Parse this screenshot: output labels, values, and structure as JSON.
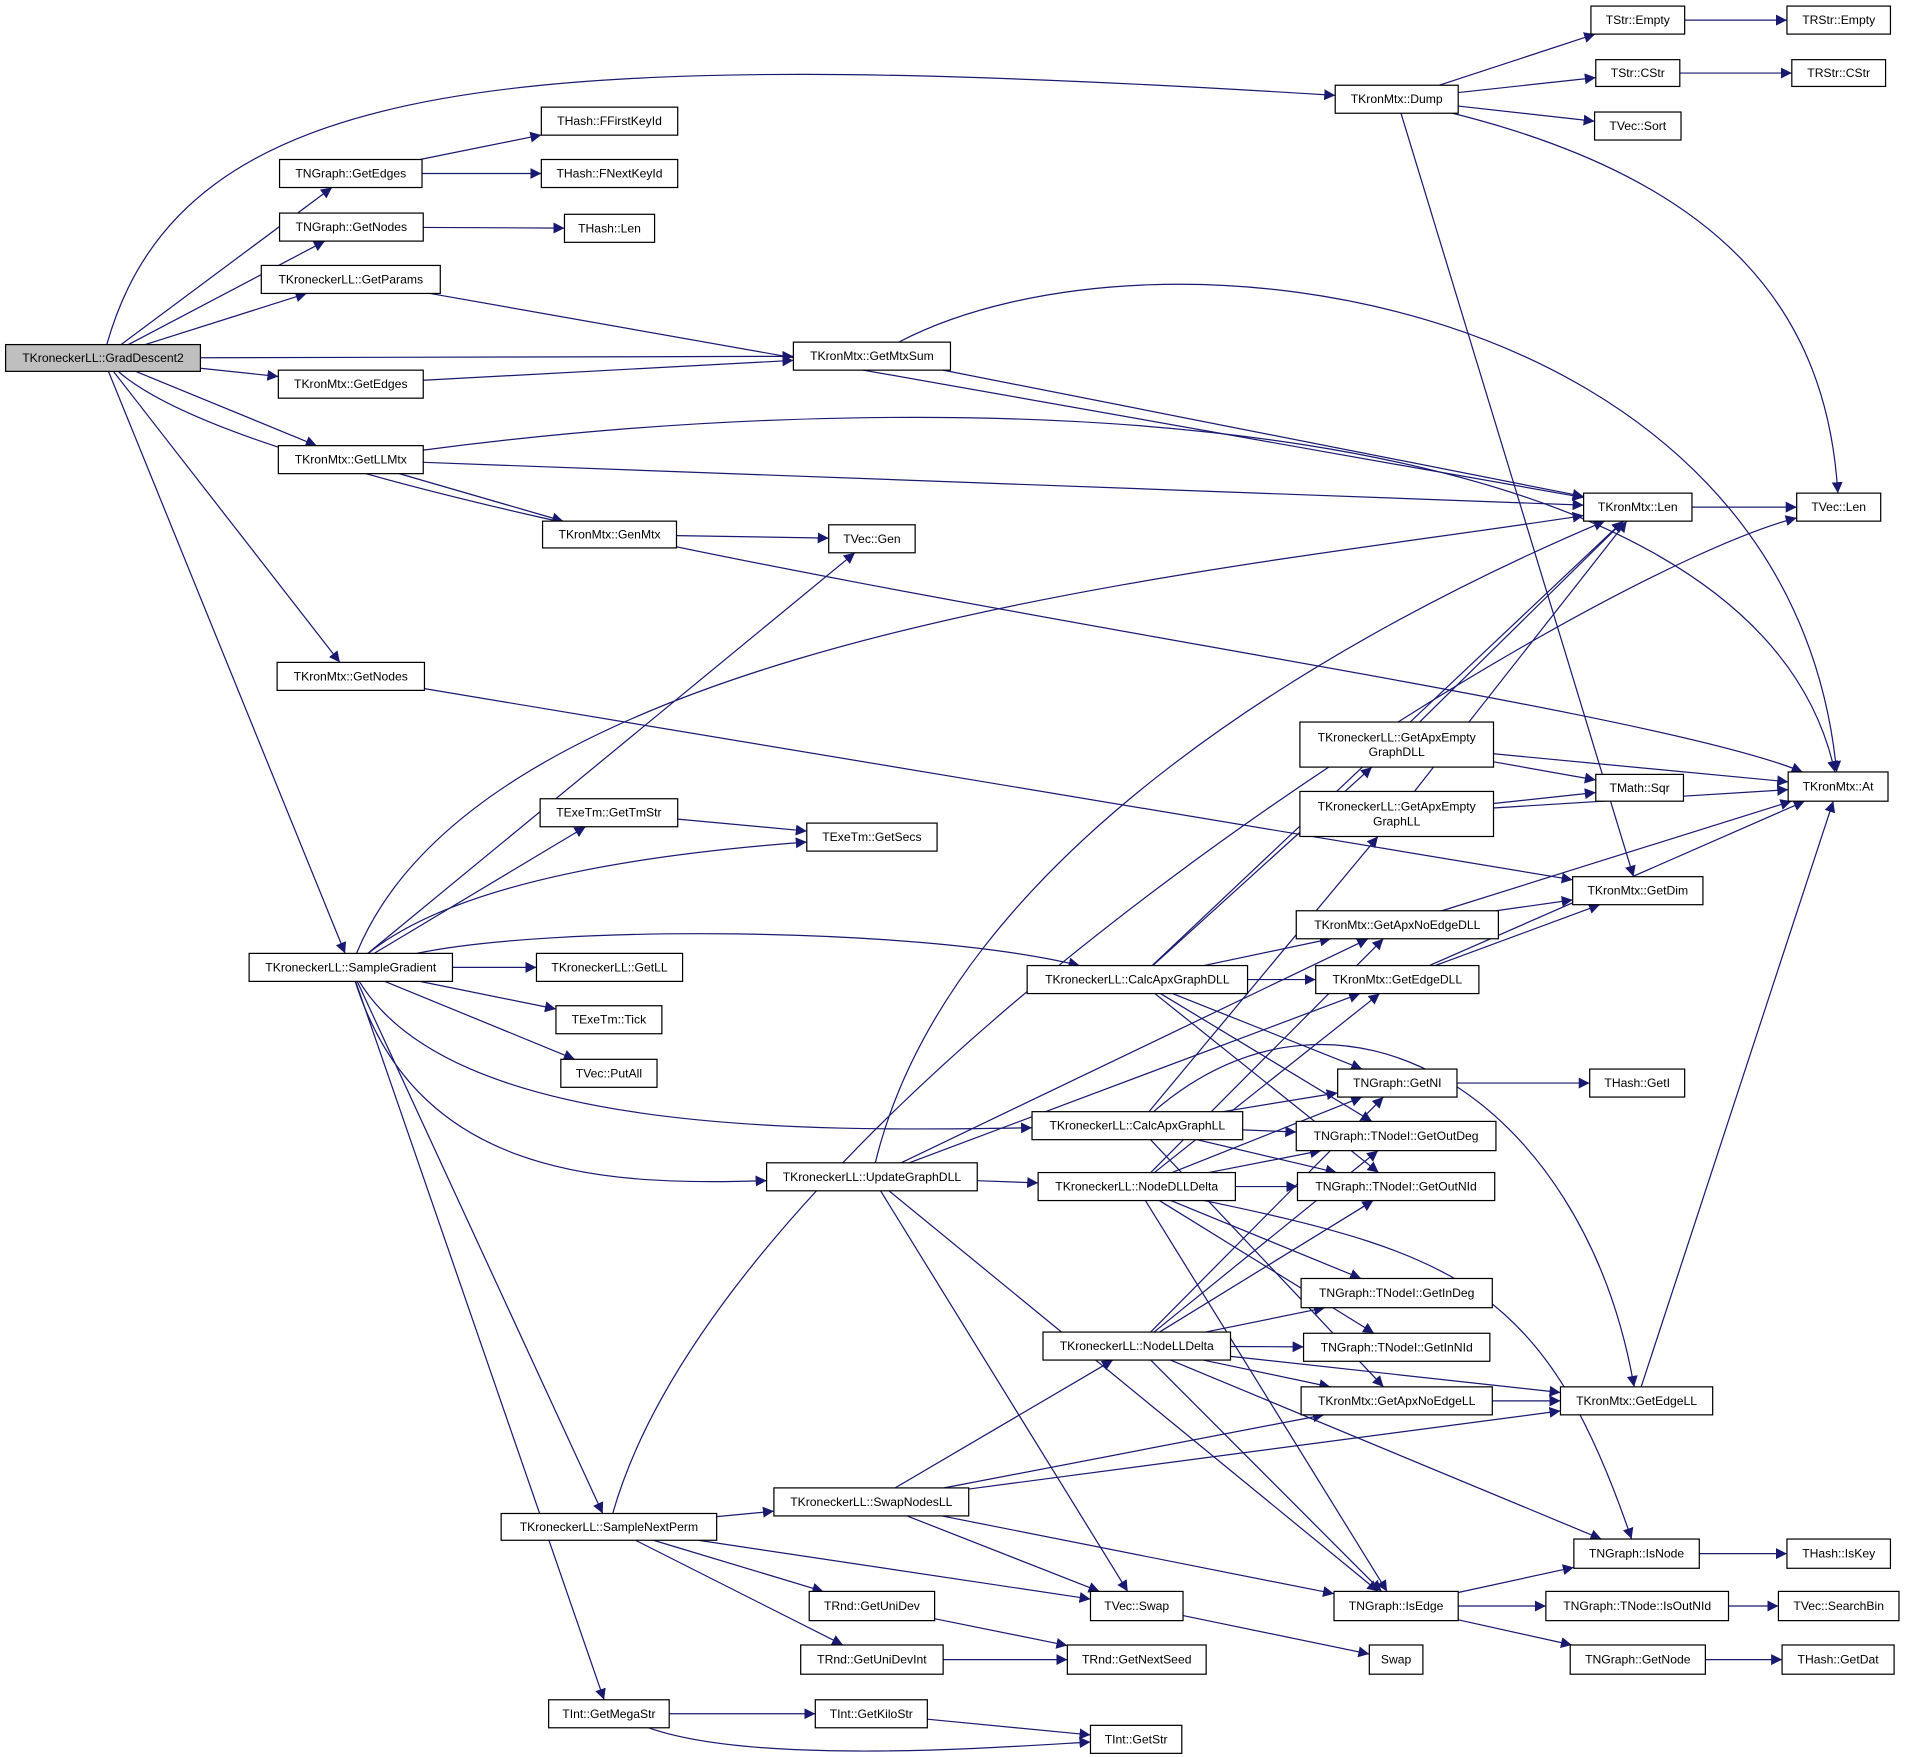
{
  "colors": {
    "edge": "#191970",
    "root_fill": "#bfbfbf",
    "node_fill": "#ffffff",
    "node_border": "#000000"
  },
  "nodes": [
    {
      "label": "TKroneckerLL::GradDescent2",
      "root": true
    },
    {
      "label": "TNGraph::GetEdges"
    },
    {
      "label": "THash::FFirstKeyId"
    },
    {
      "label": "THash::FNextKeyId"
    },
    {
      "label": "TNGraph::GetNodes"
    },
    {
      "label": "THash::Len"
    },
    {
      "label": "TKroneckerLL::GetParams"
    },
    {
      "label": "TKronMtx::GetMtxSum"
    },
    {
      "label": "TKronMtx::GetEdges"
    },
    {
      "label": "TKronMtx::GetLLMtx"
    },
    {
      "label": "TKronMtx::GenMtx"
    },
    {
      "label": "TVec::Gen"
    },
    {
      "label": "TKronMtx::GetNodes"
    },
    {
      "label": "TKronMtx::Dump"
    },
    {
      "label": "TStr::Empty"
    },
    {
      "label": "TRStr::Empty"
    },
    {
      "label": "TStr::CStr"
    },
    {
      "label": "TRStr::CStr"
    },
    {
      "label": "TVec::Sort"
    },
    {
      "label": "TKronMtx::Len"
    },
    {
      "label": "TVec::Len"
    },
    {
      "label": "TKroneckerLL::GetApxEmptyGraphDLL",
      "lines": [
        "TKroneckerLL::GetApxEmpty",
        "GraphDLL"
      ]
    },
    {
      "label": "TKroneckerLL::GetApxEmptyGraphLL",
      "lines": [
        "TKroneckerLL::GetApxEmpty",
        "GraphLL"
      ]
    },
    {
      "label": "TMath::Sqr"
    },
    {
      "label": "TKronMtx::At"
    },
    {
      "label": "TKronMtx::GetDim"
    },
    {
      "label": "TKronMtx::GetApxNoEdgeDLL"
    },
    {
      "label": "TKroneckerLL::CalcApxGraphDLL"
    },
    {
      "label": "TKronMtx::GetEdgeDLL"
    },
    {
      "label": "TNGraph::GetNI"
    },
    {
      "label": "THash::GetI"
    },
    {
      "label": "TKroneckerLL::CalcApxGraphLL"
    },
    {
      "label": "TNGraph::TNodeI::GetOutDeg"
    },
    {
      "label": "TKroneckerLL::NodeDLLDelta"
    },
    {
      "label": "TNGraph::TNodeI::GetOutNId"
    },
    {
      "label": "TNGraph::TNodeI::GetInDeg"
    },
    {
      "label": "TKroneckerLL::NodeLLDelta"
    },
    {
      "label": "TNGraph::TNodeI::GetInNId"
    },
    {
      "label": "TKronMtx::GetApxNoEdgeLL"
    },
    {
      "label": "TKronMtx::GetEdgeLL"
    },
    {
      "label": "TExeTm::GetTmStr"
    },
    {
      "label": "TExeTm::GetSecs"
    },
    {
      "label": "TKroneckerLL::SampleGradient"
    },
    {
      "label": "TKroneckerLL::GetLL"
    },
    {
      "label": "TExeTm::Tick"
    },
    {
      "label": "TVec::PutAll"
    },
    {
      "label": "TKroneckerLL::UpdateGraphDLL"
    },
    {
      "label": "TKroneckerLL::SampleNextPerm"
    },
    {
      "label": "TKroneckerLL::SwapNodesLL"
    },
    {
      "label": "TRnd::GetUniDev"
    },
    {
      "label": "TRnd::GetUniDevInt"
    },
    {
      "label": "TRnd::GetNextSeed"
    },
    {
      "label": "TVec::Swap"
    },
    {
      "label": "Swap"
    },
    {
      "label": "TNGraph::IsEdge"
    },
    {
      "label": "TNGraph::IsNode"
    },
    {
      "label": "THash::IsKey"
    },
    {
      "label": "TNGraph::TNode::IsOutNId"
    },
    {
      "label": "TVec::SearchBin"
    },
    {
      "label": "TNGraph::GetNode"
    },
    {
      "label": "THash::GetDat"
    },
    {
      "label": "TInt::GetMegaStr"
    },
    {
      "label": "TInt::GetKiloStr"
    },
    {
      "label": "TInt::GetStr"
    }
  ],
  "edges": [
    [
      "TKroneckerLL::GradDescent2",
      "TKronMtx::Dump"
    ],
    [
      "TKroneckerLL::GradDescent2",
      "TNGraph::GetEdges"
    ],
    [
      "TKroneckerLL::GradDescent2",
      "TNGraph::GetNodes"
    ],
    [
      "TKroneckerLL::GradDescent2",
      "TKroneckerLL::GetParams"
    ],
    [
      "TKroneckerLL::GradDescent2",
      "TKronMtx::GetMtxSum"
    ],
    [
      "TKroneckerLL::GradDescent2",
      "TKronMtx::GetEdges"
    ],
    [
      "TKroneckerLL::GradDescent2",
      "TKronMtx::GetLLMtx"
    ],
    [
      "TKroneckerLL::GradDescent2",
      "TKronMtx::At"
    ],
    [
      "TKroneckerLL::GradDescent2",
      "TKronMtx::GetNodes"
    ],
    [
      "TKroneckerLL::GradDescent2",
      "TKroneckerLL::SampleGradient"
    ],
    [
      "TNGraph::GetEdges",
      "THash::FFirstKeyId"
    ],
    [
      "TNGraph::GetEdges",
      "THash::FNextKeyId"
    ],
    [
      "TNGraph::GetNodes",
      "THash::Len"
    ],
    [
      "TKroneckerLL::GetParams",
      "TKronMtx::Len"
    ],
    [
      "TKronMtx::GetEdges",
      "TKronMtx::GetMtxSum"
    ],
    [
      "TKronMtx::GetMtxSum",
      "TKronMtx::Len"
    ],
    [
      "TKronMtx::GetMtxSum",
      "TKronMtx::At"
    ],
    [
      "TKronMtx::GetLLMtx",
      "TKronMtx::Len"
    ],
    [
      "TKronMtx::GetLLMtx",
      "TKronMtx::At"
    ],
    [
      "TKronMtx::GetLLMtx",
      "TKronMtx::GenMtx"
    ],
    [
      "TKronMtx::GenMtx",
      "TVec::Gen"
    ],
    [
      "TKronMtx::GetNodes",
      "TKronMtx::GetDim"
    ],
    [
      "TKronMtx::Dump",
      "TStr::Empty"
    ],
    [
      "TKronMtx::Dump",
      "TStr::CStr"
    ],
    [
      "TKronMtx::Dump",
      "TVec::Sort"
    ],
    [
      "TKronMtx::Dump",
      "TVec::Len"
    ],
    [
      "TKronMtx::Dump",
      "TKronMtx::GetDim"
    ],
    [
      "TStr::Empty",
      "TRStr::Empty"
    ],
    [
      "TStr::CStr",
      "TRStr::CStr"
    ],
    [
      "TKronMtx::Len",
      "TVec::Len"
    ],
    [
      "TKroneckerLL::SampleGradient",
      "TVec::Gen"
    ],
    [
      "TKroneckerLL::SampleGradient",
      "TKronMtx::Len"
    ],
    [
      "TKroneckerLL::SampleGradient",
      "TExeTm::GetTmStr"
    ],
    [
      "TKroneckerLL::SampleGradient",
      "TExeTm::GetSecs"
    ],
    [
      "TKroneckerLL::SampleGradient",
      "TKroneckerLL::CalcApxGraphDLL"
    ],
    [
      "TKroneckerLL::SampleGradient",
      "TKroneckerLL::GetLL"
    ],
    [
      "TKroneckerLL::SampleGradient",
      "TExeTm::Tick"
    ],
    [
      "TKroneckerLL::SampleGradient",
      "TVec::PutAll"
    ],
    [
      "TKroneckerLL::SampleGradient",
      "TKroneckerLL::CalcApxGraphLL"
    ],
    [
      "TKroneckerLL::SampleGradient",
      "TKroneckerLL::UpdateGraphDLL"
    ],
    [
      "TKroneckerLL::SampleGradient",
      "TKroneckerLL::SampleNextPerm"
    ],
    [
      "TKroneckerLL::SampleGradient",
      "TInt::GetMegaStr"
    ],
    [
      "TExeTm::GetTmStr",
      "TExeTm::GetSecs"
    ],
    [
      "TKroneckerLL::CalcApxGraphDLL",
      "TKronMtx::Len"
    ],
    [
      "TKroneckerLL::CalcApxGraphDLL",
      "TKroneckerLL::GetApxEmptyGraphDLL"
    ],
    [
      "TKroneckerLL::CalcApxGraphDLL",
      "TKronMtx::GetApxNoEdgeDLL"
    ],
    [
      "TKroneckerLL::CalcApxGraphDLL",
      "TKronMtx::GetEdgeDLL"
    ],
    [
      "TKroneckerLL::CalcApxGraphDLL",
      "TNGraph::GetNI"
    ],
    [
      "TKroneckerLL::CalcApxGraphDLL",
      "TNGraph::TNodeI::GetOutDeg"
    ],
    [
      "TKroneckerLL::CalcApxGraphDLL",
      "TNGraph::TNodeI::GetOutNId"
    ],
    [
      "TKroneckerLL::CalcApxGraphLL",
      "TKroneckerLL::GetApxEmptyGraphLL"
    ],
    [
      "TKroneckerLL::CalcApxGraphLL",
      "TNGraph::GetNI"
    ],
    [
      "TKroneckerLL::CalcApxGraphLL",
      "TNGraph::TNodeI::GetOutDeg"
    ],
    [
      "TKroneckerLL::CalcApxGraphLL",
      "TNGraph::TNodeI::GetOutNId"
    ],
    [
      "TKroneckerLL::CalcApxGraphLL",
      "TKronMtx::GetApxNoEdgeLL"
    ],
    [
      "TKroneckerLL::CalcApxGraphLL",
      "TKronMtx::GetEdgeLL"
    ],
    [
      "TKroneckerLL::UpdateGraphDLL",
      "TKronMtx::Len"
    ],
    [
      "TKroneckerLL::UpdateGraphDLL",
      "TKronMtx::GetApxNoEdgeDLL"
    ],
    [
      "TKroneckerLL::UpdateGraphDLL",
      "TKronMtx::GetEdgeDLL"
    ],
    [
      "TKroneckerLL::UpdateGraphDLL",
      "TKroneckerLL::NodeDLLDelta"
    ],
    [
      "TKroneckerLL::UpdateGraphDLL",
      "TVec::Swap"
    ],
    [
      "TKroneckerLL::UpdateGraphDLL",
      "TNGraph::IsEdge"
    ],
    [
      "TKroneckerLL::NodeDLLDelta",
      "TNGraph::GetNI"
    ],
    [
      "TKroneckerLL::NodeDLLDelta",
      "TNGraph::TNodeI::GetOutDeg"
    ],
    [
      "TKroneckerLL::NodeDLLDelta",
      "TNGraph::TNodeI::GetOutNId"
    ],
    [
      "TKroneckerLL::NodeDLLDelta",
      "TNGraph::TNodeI::GetInDeg"
    ],
    [
      "TKroneckerLL::NodeDLLDelta",
      "TNGraph::TNodeI::GetInNId"
    ],
    [
      "TKroneckerLL::NodeDLLDelta",
      "TKronMtx::GetApxNoEdgeDLL"
    ],
    [
      "TKroneckerLL::NodeDLLDelta",
      "TKronMtx::GetEdgeDLL"
    ],
    [
      "TKroneckerLL::NodeDLLDelta",
      "TNGraph::IsNode"
    ],
    [
      "TKroneckerLL::NodeDLLDelta",
      "TNGraph::IsEdge"
    ],
    [
      "TKroneckerLL::NodeLLDelta",
      "TNGraph::GetNI"
    ],
    [
      "TKroneckerLL::NodeLLDelta",
      "TNGraph::TNodeI::GetOutDeg"
    ],
    [
      "TKroneckerLL::NodeLLDelta",
      "TNGraph::TNodeI::GetOutNId"
    ],
    [
      "TKroneckerLL::NodeLLDelta",
      "TNGraph::TNodeI::GetInDeg"
    ],
    [
      "TKroneckerLL::NodeLLDelta",
      "TNGraph::TNodeI::GetInNId"
    ],
    [
      "TKroneckerLL::NodeLLDelta",
      "TKronMtx::GetApxNoEdgeLL"
    ],
    [
      "TKroneckerLL::NodeLLDelta",
      "TKronMtx::GetEdgeLL"
    ],
    [
      "TKroneckerLL::NodeLLDelta",
      "TNGraph::IsNode"
    ],
    [
      "TKroneckerLL::NodeLLDelta",
      "TNGraph::IsEdge"
    ],
    [
      "TKroneckerLL::GetApxEmptyGraphDLL",
      "TKronMtx::Len"
    ],
    [
      "TKroneckerLL::GetApxEmptyGraphDLL",
      "TMath::Sqr"
    ],
    [
      "TKroneckerLL::GetApxEmptyGraphDLL",
      "TKronMtx::At"
    ],
    [
      "TKroneckerLL::GetApxEmptyGraphLL",
      "TKronMtx::Len"
    ],
    [
      "TKroneckerLL::GetApxEmptyGraphLL",
      "TMath::Sqr"
    ],
    [
      "TKroneckerLL::GetApxEmptyGraphLL",
      "TKronMtx::At"
    ],
    [
      "TKronMtx::GetApxNoEdgeDLL",
      "TKronMtx::GetDim"
    ],
    [
      "TKronMtx::GetApxNoEdgeDLL",
      "TKronMtx::At"
    ],
    [
      "TKronMtx::GetEdgeDLL",
      "TKronMtx::GetDim"
    ],
    [
      "TKronMtx::GetEdgeDLL",
      "TKronMtx::At"
    ],
    [
      "TNGraph::GetNI",
      "THash::GetI"
    ],
    [
      "TKronMtx::GetApxNoEdgeLL",
      "TKronMtx::GetEdgeLL"
    ],
    [
      "TKronMtx::GetEdgeLL",
      "TKronMtx::At"
    ],
    [
      "TKroneckerLL::SampleNextPerm",
      "TKroneckerLL::SwapNodesLL"
    ],
    [
      "TKroneckerLL::SampleNextPerm",
      "TVec::Swap"
    ],
    [
      "TKroneckerLL::SampleNextPerm",
      "TRnd::GetUniDev"
    ],
    [
      "TKroneckerLL::SampleNextPerm",
      "TRnd::GetUniDevInt"
    ],
    [
      "TKroneckerLL::SampleNextPerm",
      "TVec::Len"
    ],
    [
      "TKroneckerLL::SwapNodesLL",
      "TKroneckerLL::NodeLLDelta"
    ],
    [
      "TKroneckerLL::SwapNodesLL",
      "TKronMtx::GetApxNoEdgeLL"
    ],
    [
      "TKroneckerLL::SwapNodesLL",
      "TKronMtx::GetEdgeLL"
    ],
    [
      "TKroneckerLL::SwapNodesLL",
      "TVec::Swap"
    ],
    [
      "TKroneckerLL::SwapNodesLL",
      "TNGraph::IsEdge"
    ],
    [
      "TRnd::GetUniDev",
      "TRnd::GetNextSeed"
    ],
    [
      "TRnd::GetUniDevInt",
      "TRnd::GetNextSeed"
    ],
    [
      "TVec::Swap",
      "Swap"
    ],
    [
      "TNGraph::IsEdge",
      "TNGraph::IsNode"
    ],
    [
      "TNGraph::IsEdge",
      "TNGraph::TNode::IsOutNId"
    ],
    [
      "TNGraph::IsEdge",
      "TNGraph::GetNode"
    ],
    [
      "TNGraph::IsNode",
      "THash::IsKey"
    ],
    [
      "TNGraph::TNode::IsOutNId",
      "TVec::SearchBin"
    ],
    [
      "TNGraph::GetNode",
      "THash::GetDat"
    ],
    [
      "TInt::GetMegaStr",
      "TInt::GetKiloStr"
    ],
    [
      "TInt::GetMegaStr",
      "TInt::GetStr"
    ],
    [
      "TInt::GetKiloStr",
      "TInt::GetStr"
    ]
  ]
}
